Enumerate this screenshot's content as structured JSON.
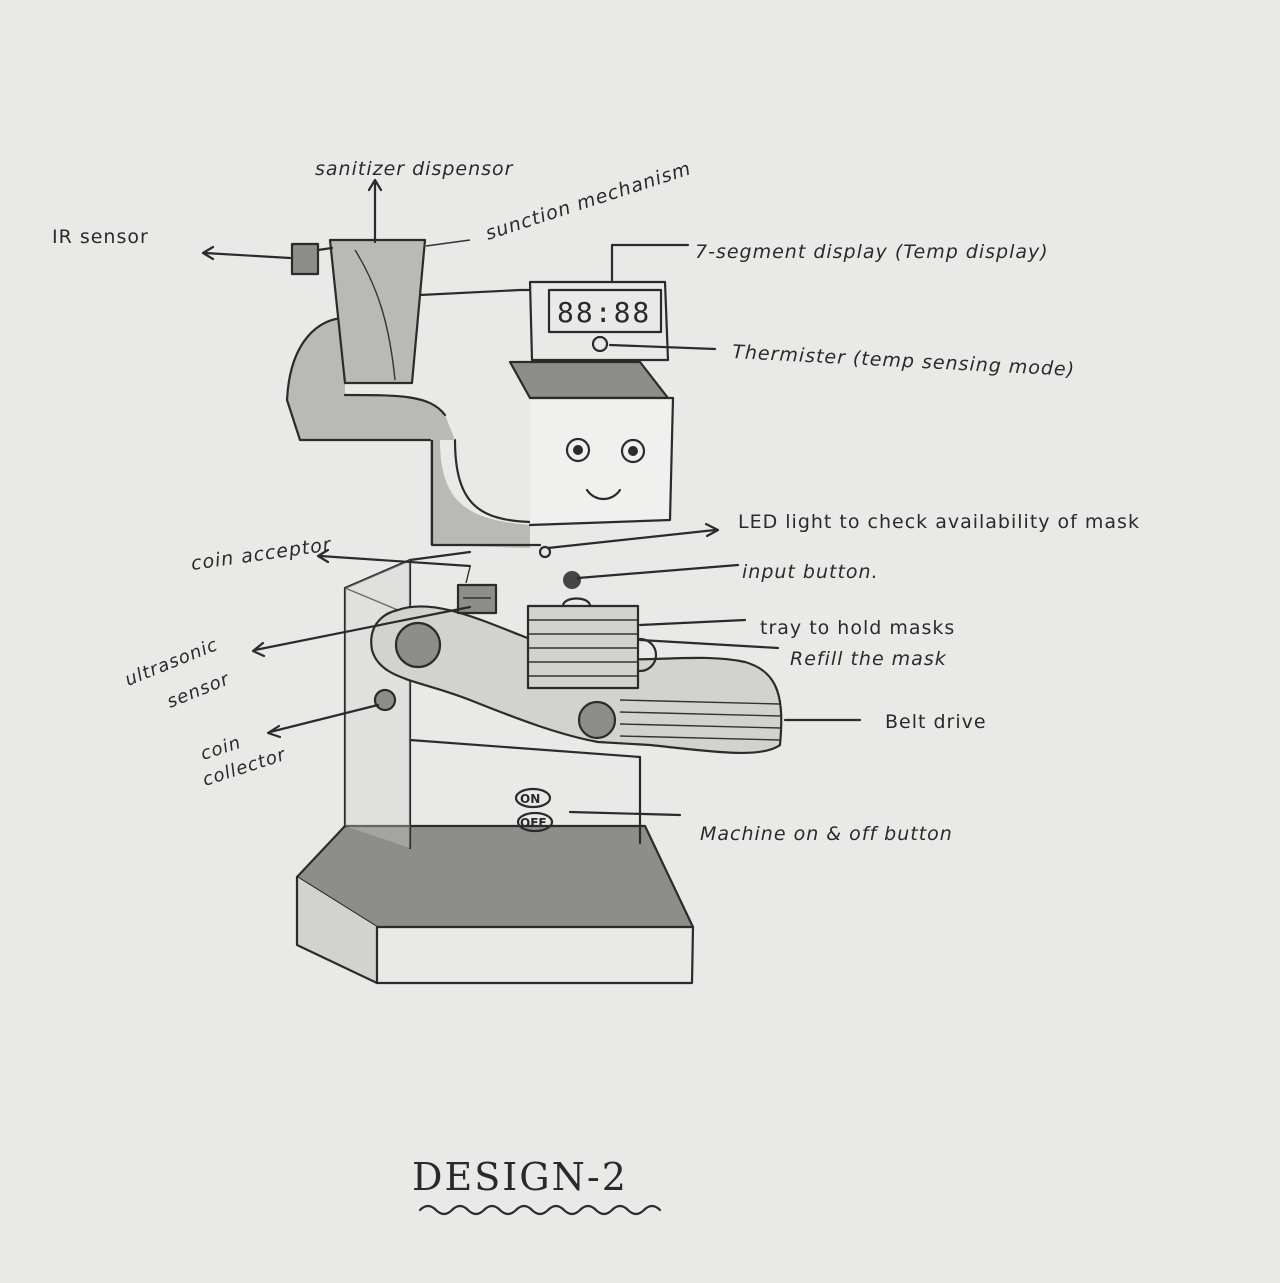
{
  "labels": {
    "sanitizer_dispenser": "sanitizer dispensor",
    "ir_sensor": "IR sensor",
    "suction_mechanism": "sunction mechanism",
    "seven_segment": "7-segment display (Temp display)",
    "thermistor": "Thermister (temp sensing mode)",
    "led_light": "LED light to check availability of mask",
    "input_button": "input button.",
    "coin_acceptor": "coin acceptor",
    "tray": "tray to hold masks",
    "refill": "Refill the mask",
    "ultrasonic_1": "ultrasonic",
    "ultrasonic_2": "sensor",
    "coin_collector_1": "coin",
    "coin_collector_2": "collector",
    "belt_drive": "Belt drive",
    "on_off": "Machine on & off button"
  },
  "display_readout": "88:88",
  "button_on": "ON",
  "button_off": "OFF",
  "title": "DESIGN-2",
  "colors": {
    "paper": "#e9e9e7",
    "ink": "#2b2b2b",
    "shade": "#b9b9b6"
  }
}
